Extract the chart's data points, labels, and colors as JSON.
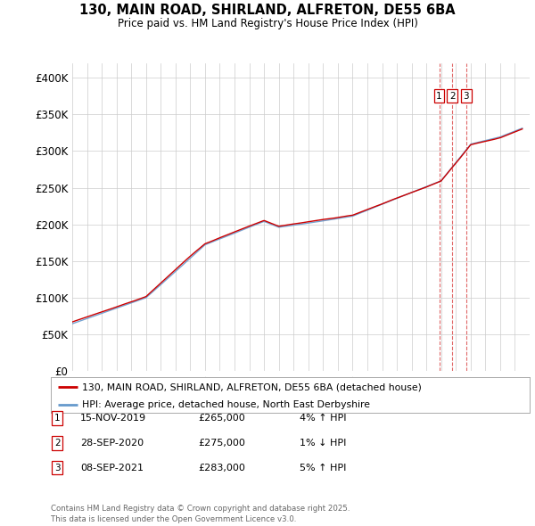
{
  "title_line1": "130, MAIN ROAD, SHIRLAND, ALFRETON, DE55 6BA",
  "title_line2": "Price paid vs. HM Land Registry's House Price Index (HPI)",
  "ylim": [
    0,
    420000
  ],
  "yticks": [
    0,
    50000,
    100000,
    150000,
    200000,
    250000,
    300000,
    350000,
    400000
  ],
  "ytick_labels": [
    "£0",
    "£50K",
    "£100K",
    "£150K",
    "£200K",
    "£250K",
    "£300K",
    "£350K",
    "£400K"
  ],
  "legend_label_red": "130, MAIN ROAD, SHIRLAND, ALFRETON, DE55 6BA (detached house)",
  "legend_label_blue": "HPI: Average price, detached house, North East Derbyshire",
  "sale_markers": [
    {
      "num": 1,
      "date": "15-NOV-2019",
      "price": "£265,000",
      "pct": "4%",
      "dir": "↑",
      "year": 2019.87
    },
    {
      "num": 2,
      "date": "28-SEP-2020",
      "price": "£275,000",
      "pct": "1%",
      "dir": "↓",
      "year": 2020.75
    },
    {
      "num": 3,
      "date": "08-SEP-2021",
      "price": "£283,000",
      "pct": "5%",
      "dir": "↑",
      "year": 2021.69
    }
  ],
  "footer": "Contains HM Land Registry data © Crown copyright and database right 2025.\nThis data is licensed under the Open Government Licence v3.0.",
  "red_color": "#cc0000",
  "blue_color": "#6699cc",
  "grid_color": "#cccccc",
  "background": "#ffffff"
}
